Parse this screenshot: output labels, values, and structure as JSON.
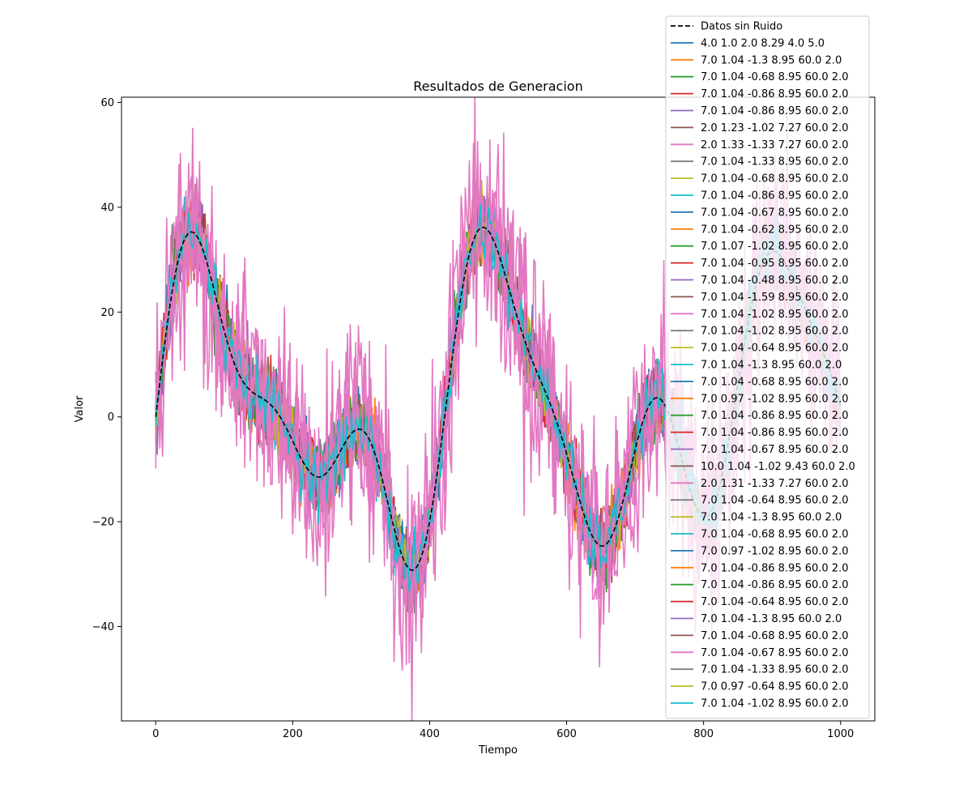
{
  "chart_data": {
    "type": "line",
    "title": "Resultados de Generacion",
    "xlabel": "Tiempo",
    "ylabel": "Valor",
    "xlim": [
      -50,
      1050
    ],
    "ylim": [
      -58,
      61
    ],
    "xticks": [
      0,
      200,
      400,
      600,
      800,
      1000
    ],
    "yticks": [
      -40,
      -20,
      0,
      20,
      40,
      60
    ],
    "grid": false,
    "legend_position": "top-right",
    "x_range": [
      0,
      1000
    ],
    "reference": {
      "name": "Datos sin Ruido",
      "color": "#000000",
      "style": "dashed",
      "components": [
        {
          "amplitude": 20,
          "period": 400,
          "phase": 0
        },
        {
          "amplitude": 8,
          "period": 140,
          "phase": 0
        },
        {
          "amplitude": 15,
          "period": 220,
          "phase": 0
        }
      ]
    },
    "noisy_series_note": "Each parameter set is drawn as the reference curve plus random noise; the noise spread (std) per series was estimated by eye.",
    "series": [
      {
        "name": "4.0 1.0 2.0 8.29 4.0 5.0",
        "color": "#1f77b4",
        "noise_std": 3
      },
      {
        "name": "7.0 1.04 -1.3 8.95 60.0 2.0",
        "color": "#ff7f0e",
        "noise_std": 3
      },
      {
        "name": "7.0 1.04 -0.68 8.95 60.0 2.0",
        "color": "#2ca02c",
        "noise_std": 3
      },
      {
        "name": "7.0 1.04 -0.86 8.95 60.0 2.0",
        "color": "#d62728",
        "noise_std": 3
      },
      {
        "name": "7.0 1.04 -0.86 8.95 60.0 2.0",
        "color": "#9467bd",
        "noise_std": 3
      },
      {
        "name": "2.0 1.23 -1.02 7.27 60.0 2.0",
        "color": "#8c564b",
        "noise_std": 3
      },
      {
        "name": "2.0 1.33 -1.33 7.27 60.0 2.0",
        "color": "#e377c2",
        "noise_std": 10
      },
      {
        "name": "7.0 1.04 -1.33 8.95 60.0 2.0",
        "color": "#7f7f7f",
        "noise_std": 3
      },
      {
        "name": "7.0 1.04 -0.68 8.95 60.0 2.0",
        "color": "#bcbd22",
        "noise_std": 3
      },
      {
        "name": "7.0 1.04 -0.86 8.95 60.0 2.0",
        "color": "#17becf",
        "noise_std": 3
      },
      {
        "name": "7.0 1.04 -0.67 8.95 60.0 2.0",
        "color": "#1f77b4",
        "noise_std": 3
      },
      {
        "name": "7.0 1.04 -0.62 8.95 60.0 2.0",
        "color": "#ff7f0e",
        "noise_std": 3
      },
      {
        "name": "7.0 1.07 -1.02 8.95 60.0 2.0",
        "color": "#2ca02c",
        "noise_std": 3
      },
      {
        "name": "7.0 1.04 -0.95 8.95 60.0 2.0",
        "color": "#d62728",
        "noise_std": 3
      },
      {
        "name": "7.0 1.04 -0.48 8.95 60.0 2.0",
        "color": "#9467bd",
        "noise_std": 3
      },
      {
        "name": "7.0 1.04 -1.59 8.95 60.0 2.0",
        "color": "#8c564b",
        "noise_std": 3
      },
      {
        "name": "7.0 1.04 -1.02 8.95 60.0 2.0",
        "color": "#e377c2",
        "noise_std": 3
      },
      {
        "name": "7.0 1.04 -1.02 8.95 60.0 2.0",
        "color": "#7f7f7f",
        "noise_std": 3
      },
      {
        "name": "7.0 1.04 -0.64 8.95 60.0 2.0",
        "color": "#bcbd22",
        "noise_std": 3
      },
      {
        "name": "7.0 1.04 -1.3 8.95 60.0 2.0",
        "color": "#17becf",
        "noise_std": 3
      },
      {
        "name": "7.0 1.04 -0.68 8.95 60.0 2.0",
        "color": "#1f77b4",
        "noise_std": 3
      },
      {
        "name": "7.0 0.97 -1.02 8.95 60.0 2.0",
        "color": "#ff7f0e",
        "noise_std": 3
      },
      {
        "name": "7.0 1.04 -0.86 8.95 60.0 2.0",
        "color": "#2ca02c",
        "noise_std": 3
      },
      {
        "name": "7.0 1.04 -0.86 8.95 60.0 2.0",
        "color": "#d62728",
        "noise_std": 3
      },
      {
        "name": "7.0 1.04 -0.67 8.95 60.0 2.0",
        "color": "#9467bd",
        "noise_std": 3
      },
      {
        "name": "10.0 1.04 -1.02 9.43 60.0 2.0",
        "color": "#8c564b",
        "noise_std": 3
      },
      {
        "name": "2.0 1.31 -1.33 7.27 60.0 2.0",
        "color": "#e377c2",
        "noise_std": 10
      },
      {
        "name": "7.0 1.04 -0.64 8.95 60.0 2.0",
        "color": "#7f7f7f",
        "noise_std": 3
      },
      {
        "name": "7.0 1.04 -1.3 8.95 60.0 2.0",
        "color": "#bcbd22",
        "noise_std": 3
      },
      {
        "name": "7.0 1.04 -0.68 8.95 60.0 2.0",
        "color": "#17becf",
        "noise_std": 3
      },
      {
        "name": "7.0 0.97 -1.02 8.95 60.0 2.0",
        "color": "#1f77b4",
        "noise_std": 3
      },
      {
        "name": "7.0 1.04 -0.86 8.95 60.0 2.0",
        "color": "#ff7f0e",
        "noise_std": 3
      },
      {
        "name": "7.0 1.04 -0.86 8.95 60.0 2.0",
        "color": "#2ca02c",
        "noise_std": 3
      },
      {
        "name": "7.0 1.04 -0.64 8.95 60.0 2.0",
        "color": "#d62728",
        "noise_std": 3
      },
      {
        "name": "7.0 1.04 -1.3 8.95 60.0 2.0",
        "color": "#9467bd",
        "noise_std": 3
      },
      {
        "name": "7.0 1.04 -0.68 8.95 60.0 2.0",
        "color": "#8c564b",
        "noise_std": 3
      },
      {
        "name": "7.0 1.04 -0.67 8.95 60.0 2.0",
        "color": "#e377c2",
        "noise_std": 10
      },
      {
        "name": "7.0 1.04 -1.33 8.95 60.0 2.0",
        "color": "#7f7f7f",
        "noise_std": 3
      },
      {
        "name": "7.0 0.97 -0.64 8.95 60.0 2.0",
        "color": "#bcbd22",
        "noise_std": 3
      },
      {
        "name": "7.0 1.04 -1.02 8.95 60.0 2.0",
        "color": "#17becf",
        "noise_std": 3
      }
    ]
  }
}
